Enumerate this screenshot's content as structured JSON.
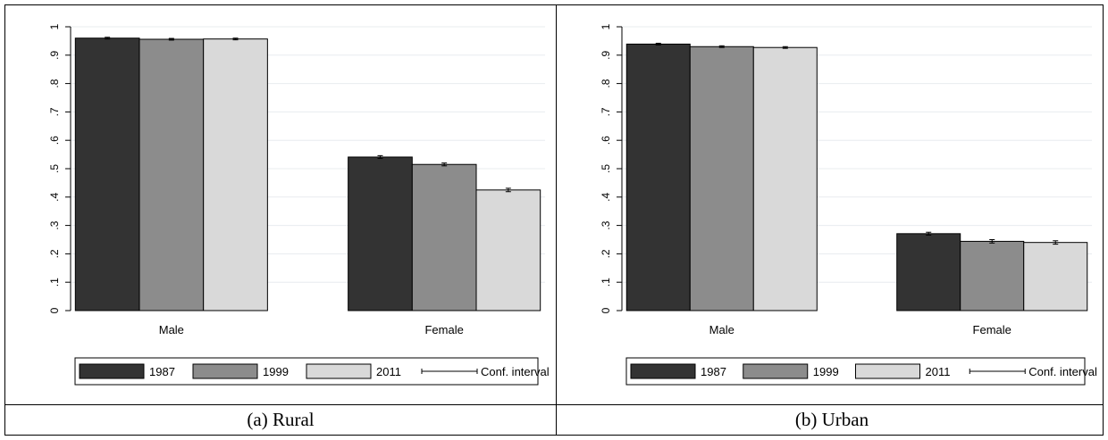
{
  "colors": {
    "1987": "#333333",
    "1999": "#8c8c8c",
    "2011": "#d9d9d9",
    "plot_bg": "#ffffff",
    "grid": "#e8ecef"
  },
  "chart_data": [
    {
      "type": "bar",
      "caption": "(a) Rural",
      "categories": [
        "Male",
        "Female"
      ],
      "series": [
        {
          "name": "1987",
          "values": [
            0.96,
            0.541
          ],
          "ci": [
            [
              0.957,
              0.963
            ],
            [
              0.536,
              0.546
            ]
          ]
        },
        {
          "name": "1999",
          "values": [
            0.956,
            0.515
          ],
          "ci": [
            [
              0.953,
              0.959
            ],
            [
              0.51,
              0.52
            ]
          ]
        },
        {
          "name": "2011",
          "values": [
            0.957,
            0.425
          ],
          "ci": [
            [
              0.954,
              0.96
            ],
            [
              0.419,
              0.431
            ]
          ]
        }
      ],
      "ylim": [
        0,
        1
      ],
      "yticks": [
        "0",
        ".1",
        ".2",
        ".3",
        ".4",
        ".5",
        ".6",
        ".7",
        ".8",
        ".9",
        "1"
      ],
      "legend": [
        "1987",
        "1999",
        "2011",
        "Conf. interval"
      ],
      "legend_position": "bottom",
      "grid": true
    },
    {
      "type": "bar",
      "caption": "(b) Urban",
      "categories": [
        "Male",
        "Female"
      ],
      "series": [
        {
          "name": "1987",
          "values": [
            0.939,
            0.271
          ],
          "ci": [
            [
              0.936,
              0.942
            ],
            [
              0.266,
              0.276
            ]
          ]
        },
        {
          "name": "1999",
          "values": [
            0.93,
            0.244
          ],
          "ci": [
            [
              0.927,
              0.933
            ],
            [
              0.238,
              0.25
            ]
          ]
        },
        {
          "name": "2011",
          "values": [
            0.927,
            0.24
          ],
          "ci": [
            [
              0.924,
              0.93
            ],
            [
              0.234,
              0.246
            ]
          ]
        }
      ],
      "ylim": [
        0,
        1
      ],
      "yticks": [
        "0",
        ".1",
        ".2",
        ".3",
        ".4",
        ".5",
        ".6",
        ".7",
        ".8",
        ".9",
        "1"
      ],
      "legend": [
        "1987",
        "1999",
        "2011",
        "Conf. interval"
      ],
      "legend_position": "bottom",
      "grid": true
    }
  ]
}
